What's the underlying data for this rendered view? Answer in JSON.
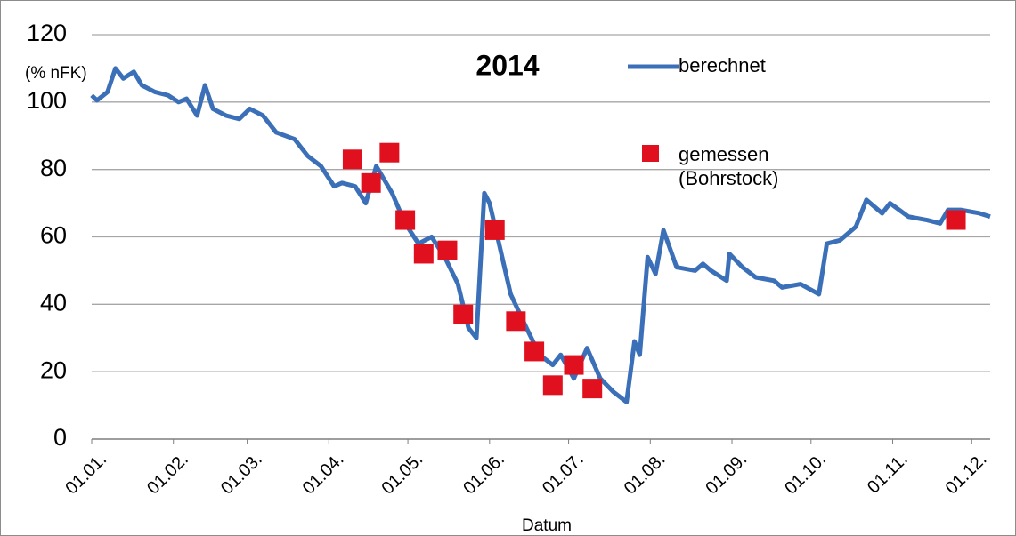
{
  "chart_data": {
    "type": "line",
    "title": "2014",
    "y_label": "(% nFK)",
    "x_label": "Datum",
    "xlim": [
      0,
      341
    ],
    "ylim": [
      0,
      120
    ],
    "yticks": [
      0,
      20,
      40,
      60,
      80,
      100,
      120
    ],
    "xticks": [
      {
        "value": 0,
        "label": "01.01."
      },
      {
        "value": 31,
        "label": "01.02."
      },
      {
        "value": 59,
        "label": "01.03."
      },
      {
        "value": 90,
        "label": "01.04."
      },
      {
        "value": 120,
        "label": "01.05."
      },
      {
        "value": 151,
        "label": "01.06."
      },
      {
        "value": 181,
        "label": "01.07."
      },
      {
        "value": 212,
        "label": "01.08."
      },
      {
        "value": 243,
        "label": "01.09."
      },
      {
        "value": 273,
        "label": "01.10."
      },
      {
        "value": 304,
        "label": "01.11."
      },
      {
        "value": 334,
        "label": "01.12."
      }
    ],
    "grid": true,
    "series": [
      {
        "name": "berechnet",
        "type": "line",
        "color": "#3b70b9",
        "x": [
          0,
          2,
          6,
          9,
          12,
          16,
          19,
          24,
          29,
          33,
          36,
          40,
          43,
          46,
          51,
          56,
          60,
          65,
          70,
          77,
          82,
          87,
          92,
          95,
          100,
          104,
          108,
          114,
          119,
          124,
          129,
          134,
          139,
          143,
          146,
          149,
          151,
          154,
          159,
          165,
          170,
          175,
          178,
          183,
          188,
          193,
          198,
          203,
          206,
          208,
          211,
          214,
          217,
          222,
          229,
          232,
          235,
          241,
          242,
          247,
          252,
          259,
          262,
          269,
          276,
          279,
          284,
          290,
          294,
          300,
          303,
          310,
          317,
          322,
          325,
          330,
          337,
          341
        ],
        "values": [
          102,
          100.5,
          103,
          110,
          107,
          109,
          105,
          103,
          102,
          100,
          101,
          96,
          105,
          98,
          96,
          95,
          98,
          96,
          91,
          89,
          84,
          81,
          75,
          76,
          75,
          70,
          81,
          73,
          64,
          58,
          60,
          54,
          46,
          33,
          30,
          73,
          70,
          60,
          43,
          33,
          25,
          22,
          25,
          18,
          27,
          18,
          14,
          11,
          29,
          25,
          54,
          49,
          62,
          51,
          50,
          52,
          50,
          47,
          55,
          51,
          48,
          47,
          45,
          46,
          43,
          58,
          59,
          63,
          71,
          67,
          70,
          66,
          65,
          64,
          68,
          68,
          67,
          66
        ]
      },
      {
        "name": "gemessen (Bohrstock)",
        "type": "scatter",
        "color": "#e0101e",
        "x": [
          99,
          106,
          113,
          119,
          126,
          135,
          141,
          153,
          161,
          168,
          175,
          183,
          190,
          328
        ],
        "values": [
          83,
          76,
          85,
          65,
          55,
          56,
          37,
          62,
          35,
          26,
          16,
          22,
          15,
          65
        ]
      }
    ]
  }
}
